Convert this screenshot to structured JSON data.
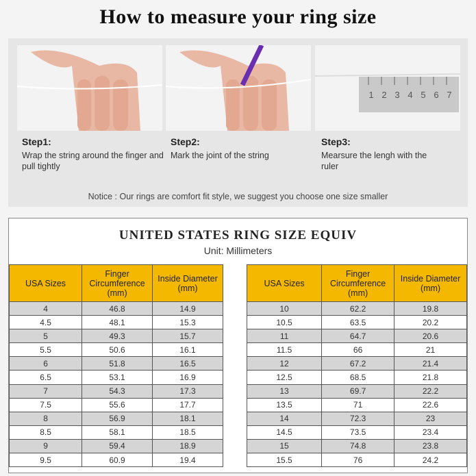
{
  "title": "How to measure your ring size",
  "steps": [
    {
      "label": "Step1:",
      "text": "Wrap the string around the finger and pull tightly"
    },
    {
      "label": "Step2:",
      "text": "Mark the joint of the string"
    },
    {
      "label": "Step3:",
      "text": "Mearsure the lengh with the ruler"
    }
  ],
  "ruler_numbers": [
    "1",
    "2",
    "3",
    "4",
    "5",
    "6",
    "7"
  ],
  "notice": "Notice : Our rings are comfort fit style, we suggest you choose one size smaller",
  "table": {
    "title": "UNITED STATES RING SIZE EQUIV",
    "unit": "Unit: Millimeters",
    "headers": [
      "USA Sizes",
      "Finger Circumference (mm)",
      "Inside Diameter (mm)"
    ],
    "left_rows": [
      [
        "4",
        "46.8",
        "14.9"
      ],
      [
        "4.5",
        "48.1",
        "15.3"
      ],
      [
        "5",
        "49.3",
        "15.7"
      ],
      [
        "5.5",
        "50.6",
        "16.1"
      ],
      [
        "6",
        "51.8",
        "16.5"
      ],
      [
        "6.5",
        "53.1",
        "16.9"
      ],
      [
        "7",
        "54.3",
        "17.3"
      ],
      [
        "7.5",
        "55.6",
        "17.7"
      ],
      [
        "8",
        "56.9",
        "18.1"
      ],
      [
        "8.5",
        "58.1",
        "18.5"
      ],
      [
        "9",
        "59.4",
        "18.9"
      ],
      [
        "9.5",
        "60.9",
        "19.4"
      ]
    ],
    "right_rows": [
      [
        "10",
        "62.2",
        "19.8"
      ],
      [
        "10.5",
        "63.5",
        "20.2"
      ],
      [
        "11",
        "64.7",
        "20.6"
      ],
      [
        "11.5",
        "66",
        "21"
      ],
      [
        "12",
        "67.2",
        "21.4"
      ],
      [
        "12.5",
        "68.5",
        "21.8"
      ],
      [
        "13",
        "69.7",
        "22.2"
      ],
      [
        "13.5",
        "71",
        "22.6"
      ],
      [
        "14",
        "72.3",
        "23"
      ],
      [
        "14.5",
        "73.5",
        "23.4"
      ],
      [
        "15",
        "74.8",
        "23.8"
      ],
      [
        "15.5",
        "76",
        "24.2"
      ]
    ]
  },
  "colors": {
    "header": "#f5b800",
    "stripe": "#d5d5d5"
  }
}
